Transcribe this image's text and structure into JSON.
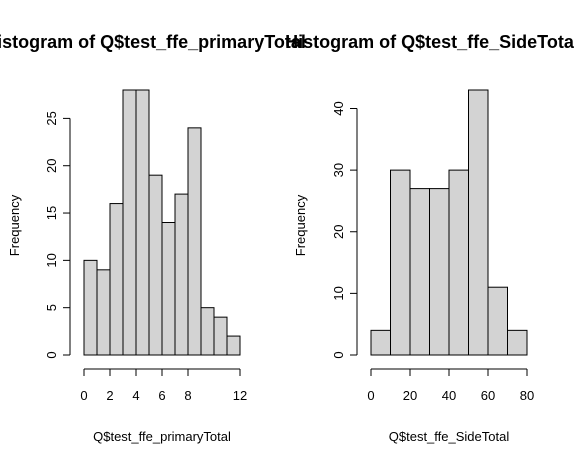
{
  "chart_data": [
    {
      "type": "bar",
      "subtype": "histogram",
      "title": "Histogram of Q$test_ffe_primaryTotal",
      "xlabel": "Q$test_ffe_primaryTotal",
      "ylabel": "Frequency",
      "bin_edges": [
        0,
        1,
        2,
        3,
        4,
        5,
        6,
        7,
        8,
        9,
        10,
        11,
        12
      ],
      "values": [
        10,
        9,
        16,
        28,
        28,
        19,
        14,
        17,
        24,
        5,
        4,
        2
      ],
      "xticks": [
        0,
        2,
        4,
        6,
        8,
        12
      ],
      "yticks": [
        0,
        5,
        10,
        15,
        20,
        25
      ],
      "xlim": [
        0,
        12
      ],
      "ylim": [
        0,
        28
      ],
      "bar_color": "#d3d3d3",
      "grid": false
    },
    {
      "type": "bar",
      "subtype": "histogram",
      "title": "Histogram of Q$test_ffe_SideTotal",
      "xlabel": "Q$test_ffe_SideTotal",
      "ylabel": "Frequency",
      "bin_edges": [
        0,
        10,
        20,
        30,
        40,
        50,
        60,
        70,
        80
      ],
      "values": [
        4,
        30,
        27,
        27,
        30,
        43,
        11,
        4
      ],
      "xticks": [
        0,
        20,
        40,
        60,
        80
      ],
      "yticks": [
        0,
        10,
        20,
        30,
        40
      ],
      "xlim": [
        0,
        80
      ],
      "ylim": [
        0,
        43
      ],
      "bar_color": "#d3d3d3",
      "grid": false
    }
  ]
}
